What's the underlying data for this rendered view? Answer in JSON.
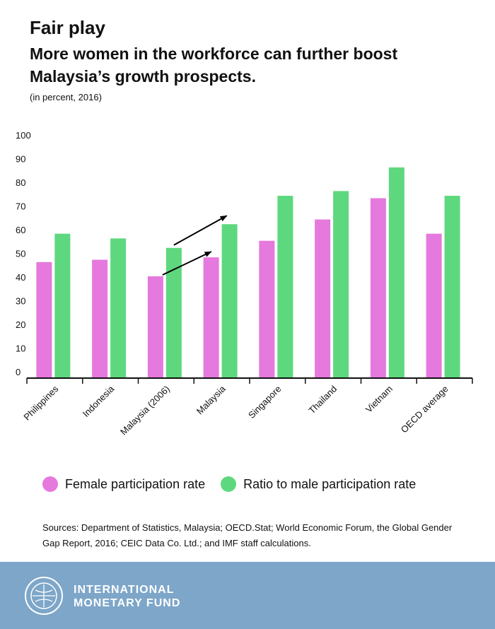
{
  "header": {
    "title": "Fair play",
    "subtitle": "More women in the workforce can further boost Malaysia’s growth prospects.",
    "unit_note": "(in percent, 2016)"
  },
  "chart_data": {
    "type": "bar",
    "categories": [
      "Philippines",
      "Indonesia",
      "Malaysia (2006)",
      "Malaysia",
      "Singapore",
      "Thailand",
      "Vietnam",
      "OECD average"
    ],
    "series": [
      {
        "name": "Female participation rate",
        "color": "#e579dd",
        "values": [
          49,
          50,
          43,
          51,
          58,
          67,
          76,
          61
        ]
      },
      {
        "name": "Ratio to male participation rate",
        "color": "#5ed87e",
        "values": [
          61,
          59,
          55,
          65,
          77,
          79,
          89,
          77
        ]
      }
    ],
    "ylim": [
      0,
      100
    ],
    "yticks": [
      0,
      10,
      20,
      30,
      40,
      50,
      60,
      70,
      80,
      90,
      100
    ],
    "grid": false,
    "legend_position": "bottom",
    "annotations": [
      "arrow from Malaysia (2006) female to Malaysia female",
      "arrow from Malaysia (2006) ratio to Malaysia ratio"
    ]
  },
  "sources": "Sources: Department of Statistics, Malaysia; OECD.Stat; World Economic Forum, the Global Gender Gap Report, 2016; CEIC Data Co. Ltd.; and IMF staff calculations.",
  "footer": {
    "org_line1": "INTERNATIONAL",
    "org_line2": "MONETARY FUND",
    "logo_icon": "imf-seal-icon",
    "background_color": "#7da6c9"
  }
}
